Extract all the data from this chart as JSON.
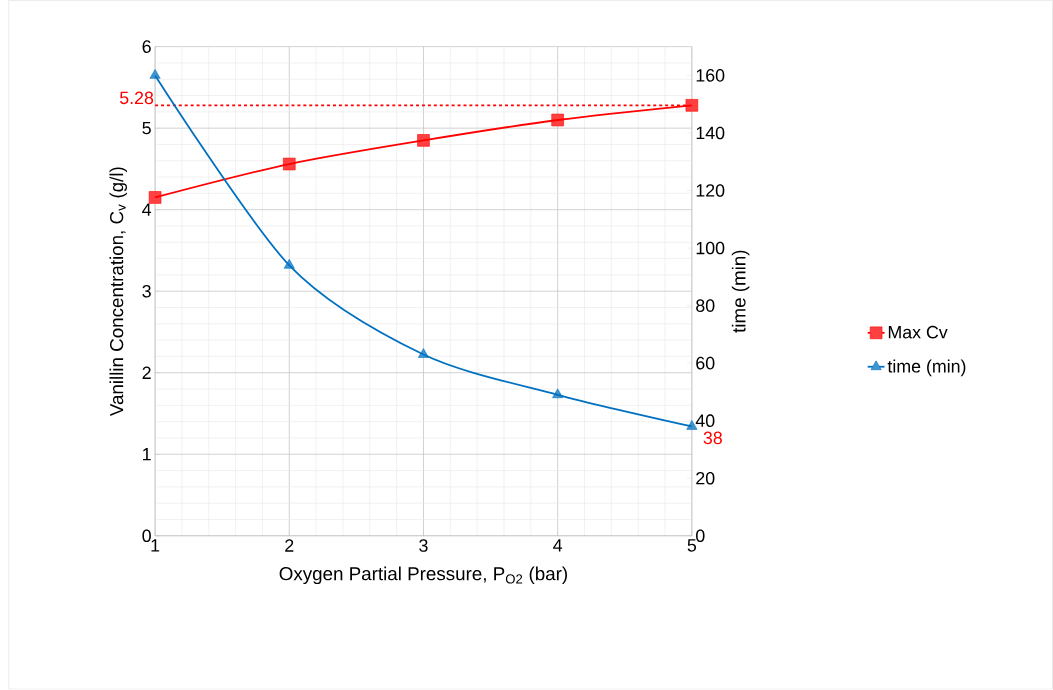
{
  "chart_data": {
    "type": "line",
    "xlabel": "Oxygen Partial Pressure, P$_{O2}$ (bar)",
    "ylabel": "Vanillin Concentration, C$_{v}$ (g/l)",
    "y2label": "time (min)",
    "x": [
      1,
      2,
      3,
      4,
      5
    ],
    "series": [
      {
        "name": "Max Cv",
        "color": "#ff0000",
        "marker": "square",
        "values": [
          4.15,
          4.56,
          4.85,
          5.1,
          5.28
        ]
      },
      {
        "name": "time (min)",
        "color": "#0070c0",
        "marker": "triangle",
        "axis": "y2",
        "values": [
          160,
          94,
          63,
          49,
          38
        ],
        "value_labels": [
          null,
          null,
          null,
          null,
          "38"
        ]
      }
    ],
    "xlim": [
      1,
      5
    ],
    "xticks": [
      1,
      2,
      3,
      4,
      5
    ],
    "ylim": [
      0,
      6
    ],
    "yticks": [
      0,
      1,
      2,
      3,
      4,
      5,
      6
    ],
    "y2lim": [
      0,
      170
    ],
    "y2ticks": [
      0,
      20,
      40,
      60,
      80,
      100,
      120,
      140,
      160
    ],
    "ref_lines": [
      {
        "axis": "y",
        "value": 5.28,
        "label": "5.28",
        "color": "#ff0000",
        "line_style": "dashed"
      }
    ],
    "grid": true,
    "legend": "right"
  }
}
